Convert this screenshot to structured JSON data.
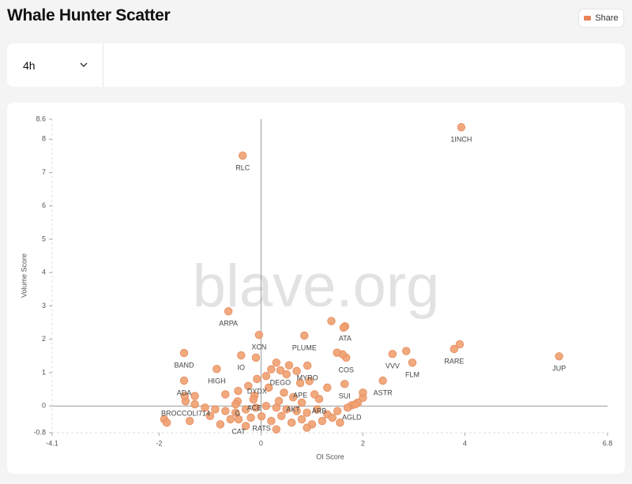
{
  "header": {
    "title": "Whale Hunter Scatter",
    "share_label": "Share"
  },
  "controls": {
    "timeframe": "4h"
  },
  "chart_data": {
    "type": "scatter",
    "x_label": "OI Score",
    "y_label": "Volume Score",
    "watermark": "blave.org",
    "color": "#f0a070",
    "xlim": [
      -4.1,
      6.8
    ],
    "ylim": [
      -0.8,
      8.6
    ],
    "xticks": [
      -4.1,
      -2,
      0,
      2,
      4,
      6.8
    ],
    "yticks": [
      -0.8,
      0,
      1,
      2,
      3,
      4,
      5,
      6,
      7,
      8,
      8.6
    ],
    "labels": [
      "1INCH",
      "RLC",
      "ARPA",
      "XCN",
      "PLUME",
      "ATA",
      "BAND",
      "IO",
      "VVV",
      "RARE",
      "FLM",
      "JUP",
      "COS",
      "MYRO",
      "HIGH",
      "DEGO",
      "DYDX",
      "APE",
      "ADA",
      "ASTR",
      "SUI",
      "ACE",
      "AKT",
      "ARB",
      "BROCCOLI714",
      "G",
      "AGLD",
      "CAT",
      "RATS",
      null,
      null,
      null,
      null,
      null,
      null,
      null,
      null,
      null,
      null,
      null,
      null,
      null,
      null,
      null,
      null,
      null,
      null,
      null,
      null,
      null,
      null,
      null,
      null,
      null,
      null,
      null,
      null,
      null,
      null,
      null,
      null,
      null,
      null,
      null,
      null,
      null,
      null,
      null,
      null,
      null,
      null,
      null,
      null,
      null,
      null,
      null,
      null,
      null,
      null,
      null,
      null,
      null,
      null,
      null,
      null,
      null,
      null,
      null,
      null,
      null,
      null,
      null
    ],
    "x": [
      3.93,
      -0.36,
      -0.64,
      -0.04,
      0.85,
      1.65,
      -1.51,
      -0.39,
      2.58,
      3.79,
      2.97,
      5.85,
      1.67,
      0.91,
      -0.87,
      0.38,
      -0.08,
      0.77,
      -1.51,
      2.39,
      1.64,
      -0.13,
      0.63,
      1.14,
      -1.48,
      -0.46,
      1.78,
      -0.44,
      0.01,
      1.38,
      1.62,
      1.6,
      1.49,
      0.55,
      0.7,
      0.95,
      1.3,
      0.5,
      0.2,
      0.3,
      -0.1,
      0.1,
      -0.25,
      -0.45,
      -0.7,
      -1.3,
      -1.5,
      -1.3,
      -1.1,
      -0.9,
      -0.7,
      -0.5,
      -0.3,
      -0.1,
      0.1,
      0.3,
      0.5,
      0.7,
      0.9,
      1.1,
      1.3,
      1.5,
      1.7,
      1.9,
      2.0,
      2.0,
      1.85,
      -1.9,
      -1.85,
      -1.4,
      -0.8,
      -0.6,
      -0.2,
      0.2,
      0.4,
      0.6,
      0.8,
      1.0,
      1.2,
      1.4,
      1.55,
      -0.3,
      0.3,
      0.9,
      -1.0,
      -0.15,
      0.45,
      0.15,
      1.05,
      0.35,
      0.8,
      -0.5,
      3.9,
      2.85
    ],
    "values": [
      8.36,
      7.51,
      2.84,
      2.13,
      2.11,
      2.39,
      1.59,
      1.52,
      1.56,
      1.71,
      1.3,
      1.49,
      1.45,
      1.21,
      1.11,
      1.07,
      0.81,
      0.69,
      0.76,
      0.76,
      0.66,
      0.31,
      0.26,
      0.21,
      0.14,
      0.14,
      0.02,
      -0.4,
      -0.31,
      2.55,
      2.35,
      1.55,
      1.6,
      1.22,
      1.05,
      0.75,
      0.55,
      0.95,
      1.1,
      1.3,
      1.45,
      0.9,
      0.6,
      0.45,
      0.35,
      0.3,
      0.3,
      0.05,
      -0.05,
      -0.1,
      -0.15,
      -0.2,
      -0.1,
      -0.05,
      0.0,
      -0.05,
      -0.1,
      -0.15,
      -0.2,
      -0.1,
      -0.25,
      -0.15,
      -0.05,
      0.1,
      0.25,
      0.4,
      0.05,
      -0.4,
      -0.5,
      -0.45,
      -0.55,
      -0.4,
      -0.35,
      -0.45,
      -0.3,
      -0.5,
      -0.4,
      -0.55,
      -0.45,
      -0.35,
      -0.5,
      -0.6,
      -0.7,
      -0.65,
      -0.3,
      0.2,
      0.4,
      0.55,
      0.35,
      0.15,
      0.1,
      0.05,
      1.85,
      1.65
    ]
  }
}
